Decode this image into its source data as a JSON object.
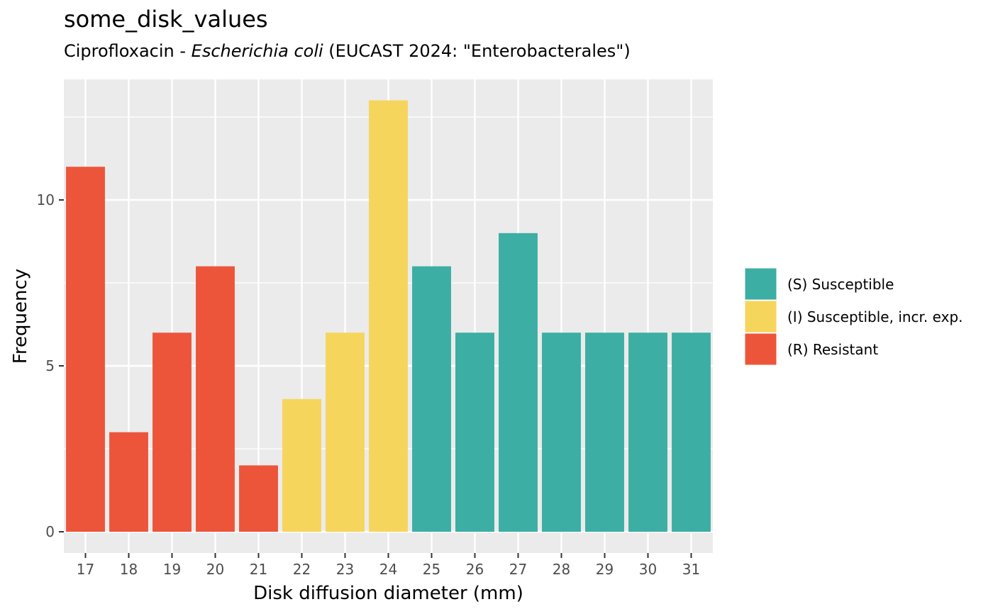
{
  "chart_data": {
    "type": "bar",
    "title": "some_disk_values",
    "subtitle": {
      "drug": "Ciprofloxacin",
      "separator": " - ",
      "organism": "Escherichia coli",
      "guideline": " (EUCAST 2024: \"Enterobacterales\")"
    },
    "xlabel": "Disk diffusion diameter (mm)",
    "ylabel": "Frequency",
    "categories": [
      "17",
      "18",
      "19",
      "20",
      "21",
      "22",
      "23",
      "24",
      "25",
      "26",
      "27",
      "28",
      "29",
      "30",
      "31"
    ],
    "values": [
      11,
      3,
      6,
      8,
      2,
      4,
      6,
      13,
      8,
      6,
      9,
      6,
      6,
      6,
      6
    ],
    "interpretation": [
      "R",
      "R",
      "R",
      "R",
      "R",
      "I",
      "I",
      "I",
      "S",
      "S",
      "S",
      "S",
      "S",
      "S",
      "S"
    ],
    "ylim": [
      0,
      13.65
    ],
    "yticks": [
      0,
      5,
      10
    ],
    "grid": true,
    "legend_position": "right",
    "legend": [
      {
        "key": "S",
        "label": "(S) Susceptible",
        "color": "#3CAEA3"
      },
      {
        "key": "I",
        "label": "(I) Susceptible, incr. exp.",
        "color": "#F6D55C"
      },
      {
        "key": "R",
        "label": "(R) Resistant",
        "color": "#ED553B"
      }
    ]
  }
}
